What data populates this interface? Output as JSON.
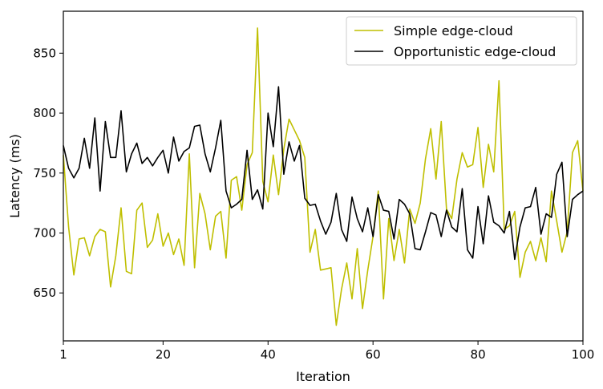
{
  "chart_data": {
    "type": "line",
    "title": "",
    "xlabel": "Iteration",
    "ylabel": "Latency (ms)",
    "xlim": [
      1,
      100
    ],
    "ylim": [
      610,
      885
    ],
    "xticks": [
      1,
      20,
      40,
      60,
      80,
      100
    ],
    "yticks": [
      650,
      700,
      750,
      800,
      850
    ],
    "grid": false,
    "legend_position": "top-right",
    "x": [
      1,
      2,
      3,
      4,
      5,
      6,
      7,
      8,
      9,
      10,
      11,
      12,
      13,
      14,
      15,
      16,
      17,
      18,
      19,
      20,
      21,
      22,
      23,
      24,
      25,
      26,
      27,
      28,
      29,
      30,
      31,
      32,
      33,
      34,
      35,
      36,
      37,
      38,
      39,
      40,
      41,
      42,
      43,
      44,
      45,
      46,
      47,
      48,
      49,
      50,
      51,
      52,
      53,
      54,
      55,
      56,
      57,
      58,
      59,
      60,
      61,
      62,
      63,
      64,
      65,
      66,
      67,
      68,
      69,
      70,
      71,
      72,
      73,
      74,
      75,
      76,
      77,
      78,
      79,
      80,
      81,
      82,
      83,
      84,
      85,
      86,
      87,
      88,
      89,
      90,
      91,
      92,
      93,
      94,
      95,
      96,
      97,
      98,
      99,
      100
    ],
    "series": [
      {
        "name": "Simple edge-cloud",
        "color": "#bfbf00",
        "values": [
          765,
          705,
          665,
          695,
          696,
          681,
          697,
          703,
          701,
          655,
          681,
          721,
          668,
          666,
          719,
          725,
          688,
          694,
          716,
          689,
          700,
          682,
          695,
          673,
          766,
          671,
          733,
          716,
          686,
          714,
          718,
          679,
          744,
          747,
          719,
          757,
          767,
          871,
          743,
          726,
          765,
          732,
          770,
          795,
          786,
          777,
          763,
          684,
          703,
          669,
          670,
          671,
          623,
          653,
          675,
          645,
          687,
          637,
          669,
          697,
          735,
          645,
          712,
          677,
          703,
          675,
          720,
          708,
          725,
          762,
          787,
          745,
          793,
          720,
          712,
          745,
          767,
          755,
          757,
          788,
          738,
          774,
          751,
          827,
          703,
          706,
          718,
          663,
          684,
          693,
          677,
          696,
          676,
          735,
          710,
          684,
          701,
          767,
          777,
          735
        ]
      },
      {
        "name": "Opportunistic edge-cloud",
        "color": "#000000",
        "values": [
          773,
          754,
          746,
          754,
          779,
          754,
          796,
          735,
          793,
          763,
          763,
          802,
          751,
          766,
          775,
          758,
          763,
          756,
          763,
          769,
          750,
          780,
          760,
          768,
          771,
          789,
          790,
          766,
          751,
          771,
          794,
          735,
          721,
          724,
          728,
          769,
          728,
          736,
          720,
          800,
          772,
          822,
          749,
          776,
          760,
          773,
          729,
          723,
          724,
          710,
          699,
          709,
          733,
          703,
          693,
          730,
          712,
          701,
          721,
          697,
          732,
          719,
          718,
          695,
          728,
          724,
          716,
          687,
          686,
          701,
          717,
          715,
          697,
          719,
          705,
          701,
          737,
          686,
          679,
          722,
          691,
          731,
          709,
          706,
          700,
          718,
          678,
          705,
          721,
          722,
          738,
          699,
          716,
          713,
          749,
          759,
          697,
          728,
          732,
          735
        ]
      }
    ]
  }
}
